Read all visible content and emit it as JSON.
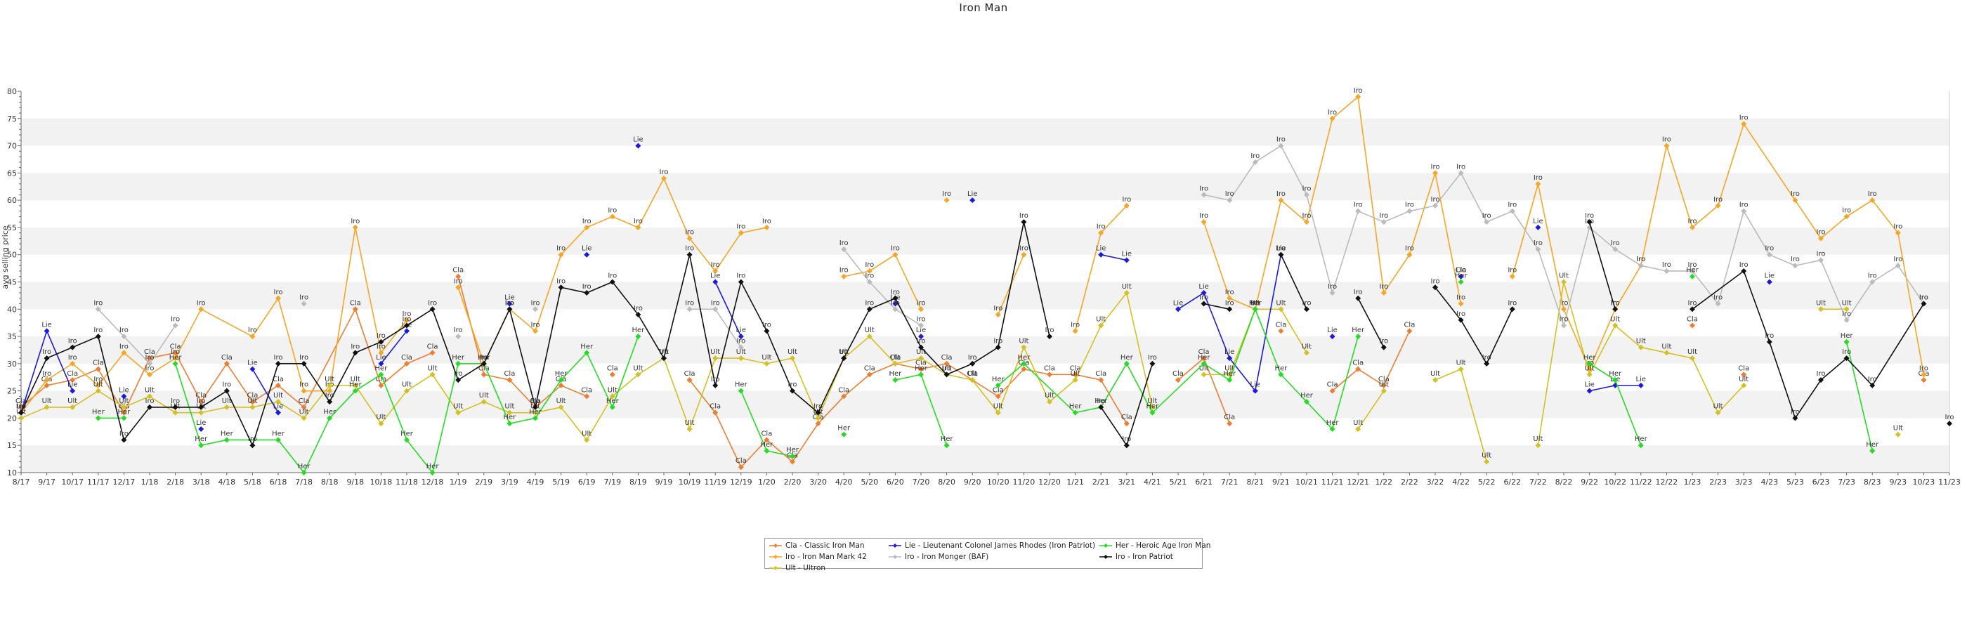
{
  "chart_data": {
    "type": "line",
    "title": "Iron Man",
    "xlabel": "",
    "ylabel": "avg selling price",
    "ylim": [
      10,
      80
    ],
    "yticks": [
      10,
      15,
      20,
      25,
      30,
      35,
      40,
      45,
      50,
      55,
      60,
      65,
      70,
      75,
      80
    ],
    "grid": "horizontal alternating bands",
    "legend_position": "bottom-center",
    "x": [
      "8/17",
      "9/17",
      "10/17",
      "11/17",
      "12/17",
      "1/18",
      "2/18",
      "3/18",
      "4/18",
      "5/18",
      "6/18",
      "7/18",
      "8/18",
      "9/18",
      "10/18",
      "11/18",
      "12/18",
      "1/19",
      "2/19",
      "3/19",
      "4/19",
      "5/19",
      "6/19",
      "7/19",
      "8/19",
      "9/19",
      "10/19",
      "11/19",
      "12/19",
      "1/20",
      "2/20",
      "3/20",
      "4/20",
      "5/20",
      "6/20",
      "7/20",
      "8/20",
      "9/20",
      "10/20",
      "11/20",
      "12/20",
      "1/21",
      "2/21",
      "3/21",
      "4/21",
      "5/21",
      "6/21",
      "7/21",
      "8/21",
      "9/21",
      "10/21",
      "11/21",
      "12/21",
      "1/22",
      "2/22",
      "3/22",
      "4/22",
      "5/22",
      "6/22",
      "7/22",
      "8/22",
      "9/22",
      "10/22",
      "11/22",
      "12/22",
      "1/23",
      "2/23",
      "3/23",
      "4/23",
      "5/23",
      "6/23",
      "7/23",
      "8/23",
      "9/23",
      "10/23",
      "11/23"
    ],
    "series": [
      {
        "name": "Cla - Classic Iron Man",
        "label": "Cla",
        "color": "#ee7d31",
        "values": [
          22,
          26,
          27,
          29,
          21,
          31,
          32,
          23,
          30,
          23,
          26,
          22,
          null,
          40,
          26,
          30,
          32,
          46,
          28,
          27,
          22,
          26,
          24,
          28,
          null,
          null,
          27,
          21,
          11,
          16,
          12,
          19,
          24,
          28,
          30,
          29,
          30,
          27,
          24,
          29,
          28,
          28,
          27,
          19,
          null,
          27,
          31,
          19,
          null,
          36,
          null,
          25,
          29,
          26,
          36,
          null,
          46,
          null,
          null,
          null,
          null,
          null,
          null,
          null,
          null,
          37,
          null,
          28,
          null,
          null,
          null,
          null,
          null,
          null,
          27,
          null
        ],
        "connect": [
          [
            0,
            16
          ],
          [
            17,
            22
          ],
          [
            23,
            24
          ],
          [
            25,
            44
          ],
          [
            45,
            48
          ],
          [
            49,
            50
          ],
          [
            51,
            54
          ],
          [
            56,
            57
          ],
          [
            65,
            66
          ],
          [
            67,
            68
          ],
          [
            73,
            74
          ]
        ]
      },
      {
        "name": "Iro - Iron Man Mark 42",
        "label": "Iro",
        "color": "#f5a623",
        "values": [
          21,
          27,
          30,
          26,
          32,
          28,
          31,
          40,
          null,
          35,
          42,
          25,
          25,
          55,
          32,
          38,
          null,
          44,
          30,
          40,
          36,
          50,
          55,
          57,
          55,
          64,
          53,
          47,
          54,
          55,
          null,
          null,
          46,
          47,
          50,
          40,
          60,
          null,
          39,
          50,
          null,
          36,
          54,
          59,
          null,
          null,
          56,
          42,
          40,
          60,
          56,
          75,
          79,
          43,
          50,
          65,
          41,
          null,
          46,
          63,
          40,
          29,
          40,
          48,
          70,
          55,
          59,
          74,
          null,
          60,
          53,
          57,
          60,
          54,
          28,
          null
        ],
        "connect": [
          [
            0,
            15
          ],
          [
            16,
            29
          ],
          [
            31,
            35
          ],
          [
            36,
            37
          ],
          [
            37,
            40
          ],
          [
            40,
            43
          ],
          [
            46,
            57
          ],
          [
            57,
            74
          ]
        ]
      },
      {
        "name": "Ult - Ultron",
        "label": "Ult",
        "color": "#d4c020",
        "values": [
          20,
          22,
          22,
          25,
          22,
          24,
          21,
          21,
          22,
          22,
          23,
          20,
          26,
          26,
          19,
          25,
          28,
          21,
          23,
          21,
          21,
          22,
          16,
          24,
          28,
          31,
          18,
          31,
          31,
          30,
          31,
          20,
          31,
          35,
          30,
          31,
          28,
          27,
          21,
          33,
          23,
          27,
          37,
          43,
          22,
          null,
          28,
          28,
          40,
          40,
          32,
          null,
          18,
          25,
          null,
          27,
          29,
          12,
          null,
          15,
          45,
          28,
          37,
          33,
          32,
          31,
          21,
          26,
          null,
          null,
          40,
          40,
          null,
          17,
          null,
          null
        ],
        "connect": [
          [
            0,
            44
          ],
          [
            46,
            50
          ],
          [
            52,
            53
          ],
          [
            55,
            57
          ],
          [
            59,
            67
          ],
          [
            70,
            71
          ]
        ]
      },
      {
        "name": "Lie - Lieutenant Colonel James Rhodes (Iron Patriot)",
        "label": "Lie",
        "color": "#1a1ae0",
        "values": [
          21,
          36,
          25,
          null,
          24,
          null,
          null,
          18,
          null,
          29,
          21,
          null,
          null,
          null,
          30,
          36,
          null,
          null,
          null,
          41,
          null,
          null,
          50,
          null,
          70,
          null,
          null,
          45,
          35,
          null,
          null,
          null,
          null,
          null,
          41,
          35,
          null,
          60,
          null,
          null,
          null,
          null,
          50,
          49,
          null,
          40,
          43,
          31,
          25,
          50,
          null,
          35,
          null,
          null,
          null,
          null,
          46,
          null,
          null,
          55,
          null,
          25,
          26,
          26,
          null,
          null,
          null,
          null,
          45,
          null,
          null,
          null,
          null,
          null,
          null,
          null
        ],
        "connect": [
          [
            0,
            2
          ],
          [
            9,
            10
          ],
          [
            14,
            15
          ],
          [
            27,
            28
          ],
          [
            42,
            43
          ],
          [
            45,
            49
          ],
          [
            61,
            63
          ]
        ]
      },
      {
        "name": "Iro - Iron Monger (BAF)",
        "label": "Iro",
        "color": "#bbbbbb",
        "values": [
          null,
          null,
          null,
          40,
          35,
          30,
          37,
          null,
          null,
          null,
          null,
          41,
          null,
          null,
          null,
          null,
          null,
          35,
          null,
          40,
          40,
          null,
          null,
          null,
          null,
          null,
          40,
          40,
          33,
          null,
          null,
          null,
          51,
          45,
          40,
          37,
          null,
          null,
          null,
          null,
          null,
          null,
          null,
          null,
          null,
          null,
          61,
          60,
          67,
          70,
          61,
          43,
          58,
          56,
          58,
          59,
          65,
          56,
          58,
          51,
          37,
          55,
          51,
          48,
          47,
          47,
          41,
          58,
          50,
          48,
          49,
          38,
          45,
          48,
          41,
          null
        ],
        "connect": [
          [
            3,
            6
          ],
          [
            10,
            11
          ],
          [
            26,
            28
          ],
          [
            32,
            35
          ],
          [
            46,
            74
          ]
        ]
      },
      {
        "name": "Her - Heroic Age Iron Man",
        "label": "Her",
        "color": "#22dd22",
        "values": [
          null,
          null,
          null,
          20,
          20,
          null,
          30,
          15,
          16,
          null,
          16,
          10,
          20,
          25,
          28,
          16,
          10,
          30,
          30,
          19,
          20,
          27,
          32,
          22,
          35,
          null,
          null,
          null,
          25,
          14,
          13,
          null,
          17,
          null,
          27,
          28,
          15,
          null,
          26,
          30,
          null,
          21,
          22,
          30,
          21,
          null,
          30,
          27,
          40,
          28,
          23,
          18,
          35,
          null,
          null,
          null,
          45,
          null,
          null,
          null,
          null,
          30,
          27,
          15,
          null,
          46,
          null,
          null,
          null,
          null,
          null,
          34,
          14,
          null,
          null,
          null
        ],
        "connect": [
          [
            3,
            4
          ],
          [
            6,
            12
          ],
          [
            12,
            24
          ],
          [
            28,
            31
          ],
          [
            32,
            33
          ],
          [
            34,
            36
          ],
          [
            38,
            52
          ],
          [
            61,
            63
          ],
          [
            71,
            72
          ]
        ]
      },
      {
        "name": "Iro - Iron Patriot",
        "label": "Iro",
        "color": "#111111",
        "values": [
          21,
          31,
          33,
          35,
          16,
          22,
          22,
          22,
          25,
          15,
          30,
          30,
          23,
          32,
          34,
          37,
          40,
          27,
          30,
          40,
          22,
          44,
          43,
          45,
          39,
          31,
          50,
          26,
          45,
          36,
          25,
          21,
          31,
          40,
          42,
          33,
          28,
          30,
          33,
          56,
          35,
          null,
          22,
          15,
          30,
          null,
          41,
          40,
          null,
          50,
          40,
          null,
          42,
          33,
          null,
          44,
          38,
          30,
          40,
          null,
          null,
          56,
          40,
          null,
          null,
          40,
          null,
          47,
          34,
          20,
          27,
          31,
          26,
          null,
          41,
          19
        ],
        "connect": [
          [
            0,
            40
          ],
          [
            42,
            44
          ],
          [
            46,
            47
          ],
          [
            49,
            50
          ],
          [
            52,
            53
          ],
          [
            55,
            58
          ],
          [
            61,
            62
          ],
          [
            65,
            74
          ]
        ]
      }
    ]
  }
}
